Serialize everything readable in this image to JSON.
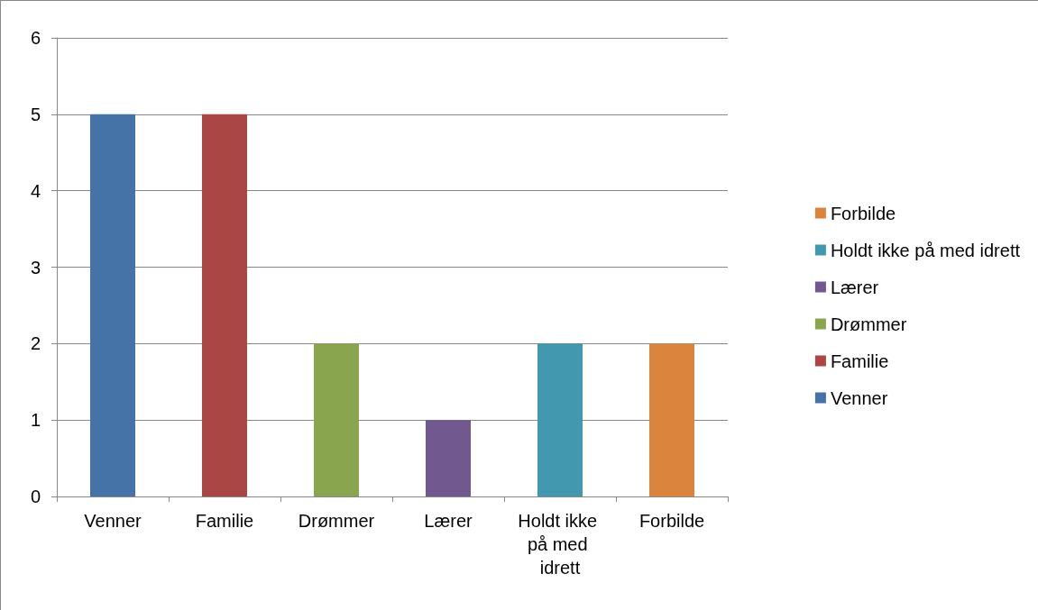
{
  "chart_data": {
    "type": "bar",
    "categories": [
      "Venner",
      "Familie",
      "Drømmer",
      "Lærer",
      "Holdt ikke på med idrett",
      "Forbilde"
    ],
    "series": [
      {
        "name": "Venner",
        "color": "#4572a7",
        "values": [
          5,
          null,
          null,
          null,
          null,
          null
        ]
      },
      {
        "name": "Familie",
        "color": "#aa4643",
        "values": [
          null,
          5,
          null,
          null,
          null,
          null
        ]
      },
      {
        "name": "Drømmer",
        "color": "#89a54e",
        "values": [
          null,
          null,
          2,
          null,
          null,
          null
        ]
      },
      {
        "name": "Lærer",
        "color": "#71588f",
        "values": [
          null,
          null,
          null,
          1,
          null,
          null
        ]
      },
      {
        "name": "Holdt ikke på med idrett",
        "color": "#4198af",
        "values": [
          null,
          null,
          null,
          null,
          2,
          null
        ]
      },
      {
        "name": "Forbilde",
        "color": "#db843d",
        "values": [
          null,
          null,
          null,
          null,
          null,
          2
        ]
      }
    ],
    "ylim": [
      0,
      6
    ],
    "yticks": [
      0,
      1,
      2,
      3,
      4,
      5,
      6
    ],
    "grid": "y",
    "legend": "right"
  }
}
